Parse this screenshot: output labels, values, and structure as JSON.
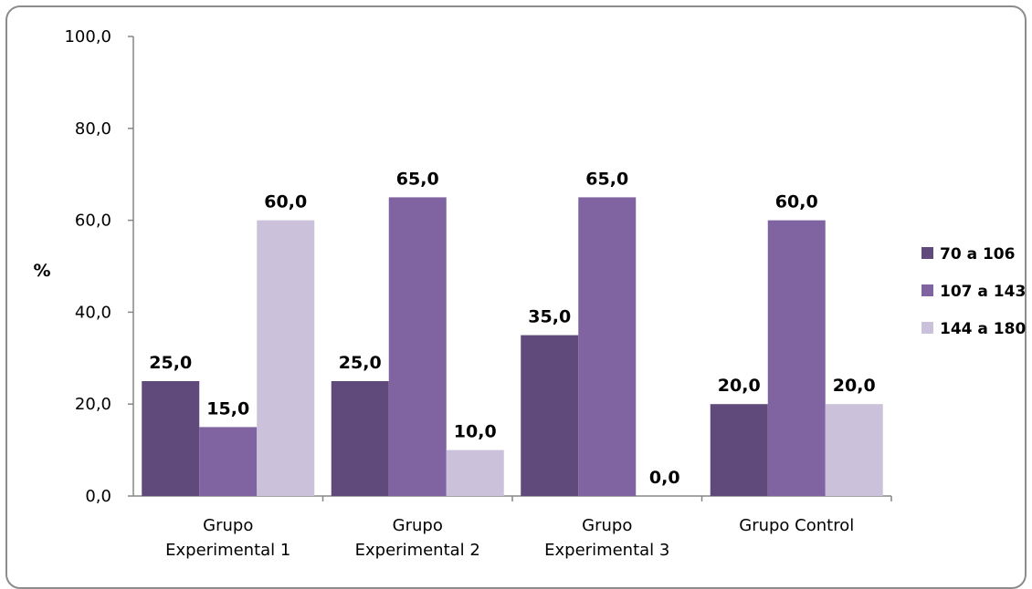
{
  "chart_data": {
    "type": "bar",
    "ylabel": "%",
    "ylim": [
      0,
      100
    ],
    "y_ticks": [
      "0,0",
      "20,0",
      "40,0",
      "60,0",
      "80,0",
      "100,0"
    ],
    "categories": [
      [
        "Grupo",
        "Experimental 1"
      ],
      [
        "Grupo",
        "Experimental 2"
      ],
      [
        "Grupo",
        "Experimental 3"
      ],
      [
        "Grupo Control"
      ]
    ],
    "series": [
      {
        "name": "70 a 106",
        "color": "#604a7b",
        "values": [
          25,
          25,
          35,
          20
        ],
        "labels": [
          "25,0",
          "25,0",
          "35,0",
          "20,0"
        ]
      },
      {
        "name": "107 a 143",
        "color": "#8064a2",
        "values": [
          15,
          65,
          65,
          60
        ],
        "labels": [
          "15,0",
          "65,0",
          "65,0",
          "60,0"
        ]
      },
      {
        "name": "144 a 180",
        "color": "#ccc1da",
        "values": [
          60,
          10,
          0,
          20
        ],
        "labels": [
          "60,0",
          "10,0",
          "0,0",
          "20,0"
        ]
      }
    ],
    "legend": "right",
    "grid": false
  }
}
